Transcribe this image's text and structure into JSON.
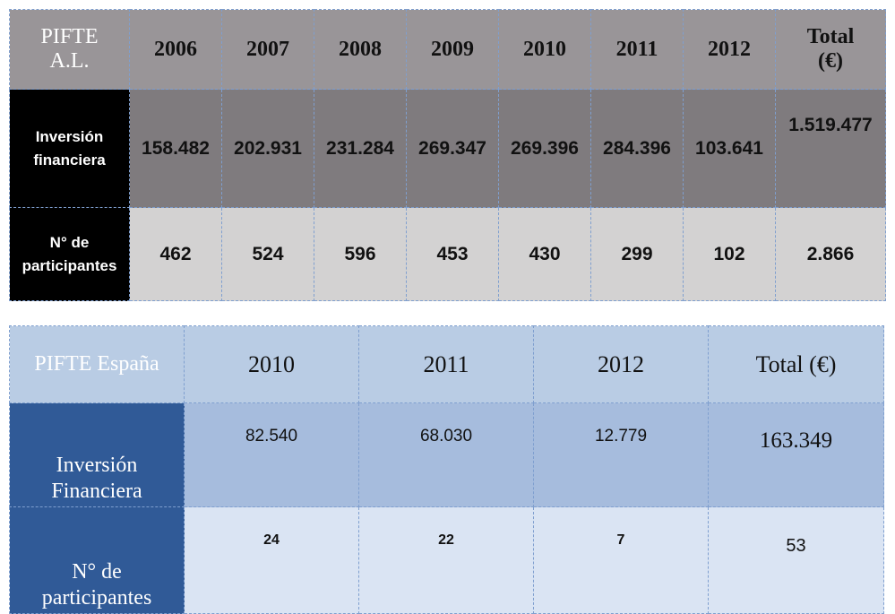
{
  "table_al": {
    "corner": [
      "PIFTE",
      "A.L."
    ],
    "years": [
      "2006",
      "2007",
      "2008",
      "2009",
      "2010",
      "2011",
      "2012"
    ],
    "total_header": [
      "Total",
      "(€)"
    ],
    "rows": [
      {
        "label": [
          "Inversión",
          "financiera"
        ],
        "values": [
          "158.482",
          "202.931",
          "231.284",
          "269.347",
          "269.396",
          "284.396",
          "103.641"
        ],
        "total": "1.519.477"
      },
      {
        "label": [
          "N° de",
          "participantes"
        ],
        "values": [
          "462",
          "524",
          "596",
          "453",
          "430",
          "299",
          "102"
        ],
        "total": "2.866"
      }
    ]
  },
  "table_es": {
    "corner": "PIFTE España",
    "years": [
      "2010",
      "2011",
      "2012"
    ],
    "total_header": "Total (€)",
    "rows": [
      {
        "label": [
          "Inversión",
          "Financiera"
        ],
        "values": [
          "82.540",
          "68.030",
          "12.779"
        ],
        "total": "163.349"
      },
      {
        "label": [
          "N° de",
          "participantes"
        ],
        "values": [
          "24",
          "22",
          "7"
        ],
        "total": "53"
      }
    ]
  }
}
